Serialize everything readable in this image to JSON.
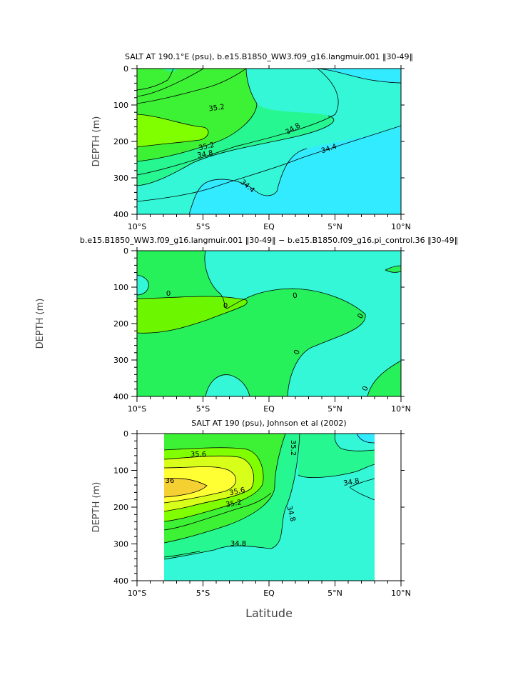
{
  "chart_data": [
    {
      "type": "contour",
      "title": "SALT AT 190.1°E (psu), b.e15.B1850_WW3.f09_g16.langmuir.001 ‖30-49‖",
      "ylabel": "DEPTH (m)",
      "xlabel": "",
      "xlim": [
        -10,
        10
      ],
      "ylim": [
        0,
        400
      ],
      "y_inverted": true,
      "x_tick_labels": [
        "10°S",
        "5°S",
        "EQ",
        "5°N",
        "10°N"
      ],
      "y_tick_labels": [
        "0",
        "100",
        "200",
        "300",
        "400"
      ],
      "contour_labels": [
        "35.2",
        "35.2",
        "34.8",
        "34.8",
        "34.4",
        "34.4"
      ],
      "colors": {
        "low": "#33ebff",
        "mid": "#33f7d6",
        "high": "#26f790",
        "higher": "#3df234",
        "highest": "#80ff00"
      }
    },
    {
      "type": "contour",
      "title": "b.e15.B1850_WW3.f09_g16.langmuir.001 ‖30-49‖ − b.e15.B1850.f09_g16.pi_control.36 ‖30-49‖",
      "ylabel": "DEPTH (m)",
      "xlabel": "",
      "xlim": [
        -10,
        10
      ],
      "ylim": [
        0,
        400
      ],
      "y_inverted": true,
      "x_tick_labels": [
        "10°S",
        "5°S",
        "EQ",
        "5°N",
        "10°N"
      ],
      "y_tick_labels": [
        "0",
        "100",
        "200",
        "300",
        "400"
      ],
      "contour_labels": [
        "0",
        "0",
        "0",
        "0",
        "0",
        "0"
      ],
      "colors": {
        "negative": "#33f7d6",
        "positive": "#26f05a",
        "strong": "#6cf700"
      }
    },
    {
      "type": "contour",
      "title": "SALT AT 190 (psu), Johnson et al (2002)",
      "ylabel": "DEPTH (m)",
      "xlabel": "Latitude",
      "xlim": [
        -10,
        10
      ],
      "ylim": [
        0,
        400
      ],
      "y_inverted": true,
      "data_xrange": [
        -8,
        8
      ],
      "x_tick_labels": [
        "10°S",
        "5°S",
        "EQ",
        "5°N",
        "10°N"
      ],
      "y_tick_labels": [
        "0",
        "100",
        "200",
        "300",
        "400"
      ],
      "contour_labels": [
        "35.2",
        "35.6",
        "36",
        "35.6",
        "35.2",
        "34.8",
        "34.8",
        "34.8"
      ],
      "colors": {
        "low": "#33f7d6",
        "mid": "#26f790",
        "high": "#3df234",
        "higher": "#80ff00",
        "top1": "#d7ff1a",
        "top2": "#ffff33",
        "top3": "#f5d033"
      }
    }
  ]
}
